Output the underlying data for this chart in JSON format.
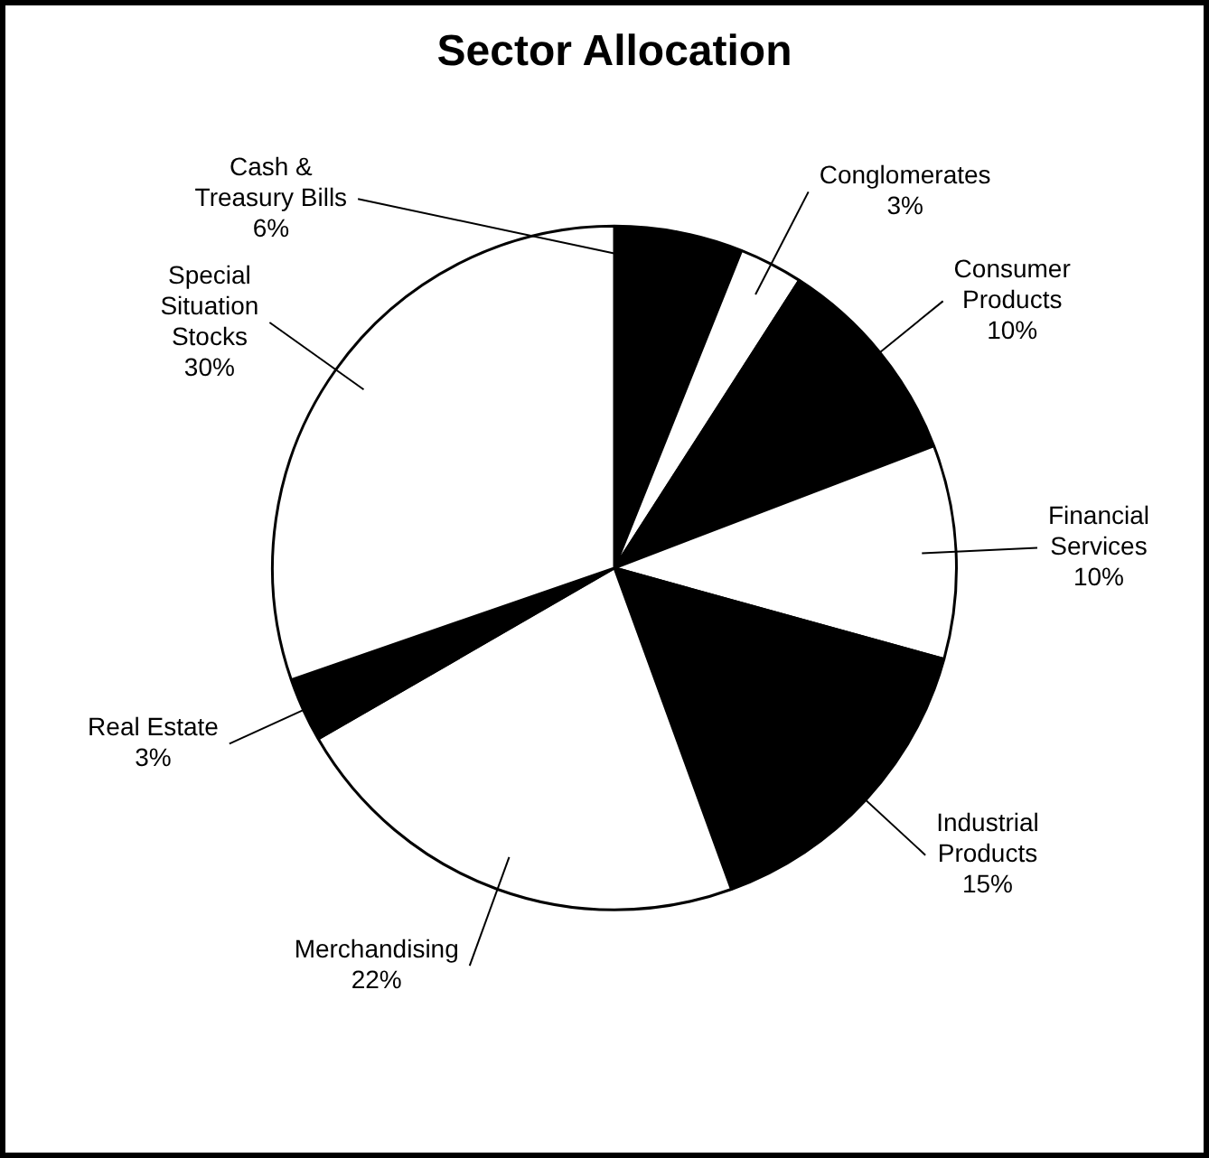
{
  "chart_data": {
    "type": "pie",
    "title": "Sector Allocation",
    "categories": [
      "Cash & Treasury Bills",
      "Conglomerates",
      "Consumer Products",
      "Financial Services",
      "Industrial Products",
      "Merchandising",
      "Real Estate",
      "Special Situation Stocks"
    ],
    "values": [
      6,
      3,
      10,
      10,
      15,
      22,
      3,
      30
    ],
    "value_labels": [
      "6%",
      "3%",
      "10%",
      "10%",
      "15%",
      "22%",
      "3%",
      "30%"
    ],
    "colors": [
      "#000000",
      "#ffffff",
      "#000000",
      "#ffffff",
      "#000000",
      "#ffffff",
      "#000000",
      "#ffffff"
    ],
    "legend": false
  }
}
